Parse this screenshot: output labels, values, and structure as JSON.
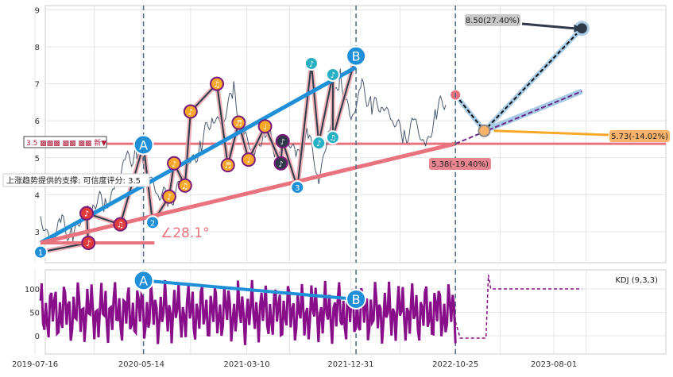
{
  "chart_data": [
    {
      "type": "line",
      "panel": "price",
      "ylim": [
        2.1,
        9.1
      ],
      "yticks": [
        "3",
        "4",
        "5",
        "6",
        "7",
        "8",
        "9"
      ],
      "grid": true,
      "price_series": [
        [
          "2019-08-01",
          3.3
        ],
        [
          "2019-09-01",
          2.8
        ],
        [
          "2019-10-01",
          3.2
        ],
        [
          "2019-11-01",
          2.9
        ],
        [
          "2019-12-01",
          3.4
        ],
        [
          "2020-01-01",
          3.9
        ],
        [
          "2020-02-01",
          3.7
        ],
        [
          "2020-03-01",
          4.2
        ],
        [
          "2020-04-01",
          4.9
        ],
        [
          "2020-05-01",
          5.2
        ],
        [
          "2020-06-01",
          4.6
        ],
        [
          "2020-07-01",
          4.1
        ],
        [
          "2020-08-01",
          3.8
        ],
        [
          "2020-09-01",
          4.3
        ],
        [
          "2020-10-01",
          4.8
        ],
        [
          "2020-11-01",
          5.4
        ],
        [
          "2020-12-01",
          6.1
        ],
        [
          "2021-01-01",
          6.0
        ],
        [
          "2021-02-01",
          6.8
        ],
        [
          "2021-03-01",
          5.6
        ],
        [
          "2021-04-01",
          5.1
        ],
        [
          "2021-05-01",
          5.8
        ],
        [
          "2021-06-01",
          5.2
        ],
        [
          "2021-07-01",
          5.5
        ],
        [
          "2021-08-01",
          5.0
        ],
        [
          "2021-09-01",
          5.6
        ],
        [
          "2021-10-01",
          4.4
        ],
        [
          "2021-11-01",
          5.9
        ],
        [
          "2021-12-01",
          7.3
        ],
        [
          "2022-01-01",
          5.9
        ],
        [
          "2022-02-01",
          7.0
        ],
        [
          "2022-03-01",
          6.3
        ],
        [
          "2022-04-01",
          6.5
        ],
        [
          "2022-05-01",
          6.0
        ],
        [
          "2022-06-01",
          5.6
        ],
        [
          "2022-07-01",
          5.9
        ],
        [
          "2022-08-01",
          5.3
        ],
        [
          "2022-09-01",
          6.2
        ],
        [
          "2022-10-01",
          6.7
        ]
      ],
      "support_level": 5.38,
      "trend_lines": [
        {
          "from": [
            "2019-08-01",
            2.7
          ],
          "to": [
            "2022-01-15",
            7.45
          ],
          "color": "#1f8fd8"
        },
        {
          "from": [
            "2019-08-01",
            2.7
          ],
          "to": [
            "2022-10-25",
            5.38
          ],
          "color": "#e8737f"
        }
      ],
      "projection": {
        "origin": [
          "2022-10-25",
          6.7
        ],
        "pivot": [
          "2023-01-15",
          5.73
        ],
        "targets": [
          [
            "2023-10-20",
            8.5
          ],
          [
            "2023-10-20",
            6.8
          ]
        ]
      },
      "vlines": [
        "2020-05-20",
        "2022-01-15",
        "2022-10-25"
      ],
      "wave_markers": [
        {
          "date": "2019-08-01",
          "price": 2.45,
          "label": "1",
          "kind": "num"
        },
        {
          "date": "2019-12-15",
          "price": 2.7,
          "label": "♪",
          "kind": "red"
        },
        {
          "date": "2019-12-10",
          "price": 3.5,
          "label": "♪",
          "kind": "red"
        },
        {
          "date": "2020-03-15",
          "price": 3.2,
          "label": "♫",
          "kind": "red"
        },
        {
          "date": "2020-05-20",
          "price": 5.35,
          "label": "A",
          "kind": "big"
        },
        {
          "date": "2020-06-15",
          "price": 3.25,
          "label": "2",
          "kind": "num"
        },
        {
          "date": "2020-08-01",
          "price": 3.95,
          "label": "♪",
          "kind": "orange"
        },
        {
          "date": "2020-08-15",
          "price": 4.85,
          "label": "♪",
          "kind": "orange"
        },
        {
          "date": "2020-09-15",
          "price": 4.25,
          "label": "♫",
          "kind": "orange"
        },
        {
          "date": "2020-10-01",
          "price": 6.25,
          "label": "♪",
          "kind": "orange"
        },
        {
          "date": "2020-12-15",
          "price": 7.0,
          "label": "♫",
          "kind": "orange"
        },
        {
          "date": "2021-01-15",
          "price": 4.8,
          "label": "♬",
          "kind": "orange"
        },
        {
          "date": "2021-02-15",
          "price": 5.95,
          "label": "♬",
          "kind": "orange"
        },
        {
          "date": "2021-03-15",
          "price": 4.95,
          "label": "♩",
          "kind": "orange"
        },
        {
          "date": "2021-05-01",
          "price": 5.85,
          "label": "♩",
          "kind": "orange"
        },
        {
          "date": "2021-06-15",
          "price": 4.85,
          "label": "♪",
          "kind": "dark"
        },
        {
          "date": "2021-06-20",
          "price": 5.45,
          "label": "♪",
          "kind": "dark"
        },
        {
          "date": "2021-08-01",
          "price": 4.2,
          "label": "3",
          "kind": "num"
        },
        {
          "date": "2021-09-10",
          "price": 7.55,
          "label": "♪",
          "kind": "teal"
        },
        {
          "date": "2021-10-01",
          "price": 5.4,
          "label": "♪",
          "kind": "teal"
        },
        {
          "date": "2021-11-10",
          "price": 7.25,
          "label": "♪",
          "kind": "teal"
        },
        {
          "date": "2021-11-10",
          "price": 5.55,
          "label": "♫",
          "kind": "teal"
        },
        {
          "date": "2022-01-15",
          "price": 7.75,
          "label": "B",
          "kind": "big"
        }
      ],
      "labels": {
        "target": "8.50(27.40%)",
        "pivot": "5.73(-14.02%)",
        "support": "5.38(-19.40%)",
        "trend": "上涨趋势提供的支撑: 可信度评分: 3.5",
        "angle": "∠28.1°",
        "legend": "3.5 ▩▩▩ ▩▩ ▩▩ 新▼"
      }
    },
    {
      "type": "line",
      "panel": "indicator",
      "title": "KDJ (9,3,3)",
      "ylim": [
        -35,
        140
      ],
      "yticks": [
        "0",
        "50",
        "100"
      ],
      "trend_line": {
        "from": [
          "2020-05-20",
          118
        ],
        "to": [
          "2022-01-15",
          78
        ],
        "color": "#1f8fd8"
      },
      "markers": [
        {
          "date": "2020-05-20",
          "value": 118,
          "label": "A"
        },
        {
          "date": "2022-01-15",
          "value": 78,
          "label": "B"
        }
      ],
      "flat_value": 100
    }
  ],
  "x_axis": {
    "ticks": [
      "2019-07-16",
      "2020-05-14",
      "2021-03-10",
      "2021-12-31",
      "2022-10-25",
      "2023-08-01"
    ]
  }
}
